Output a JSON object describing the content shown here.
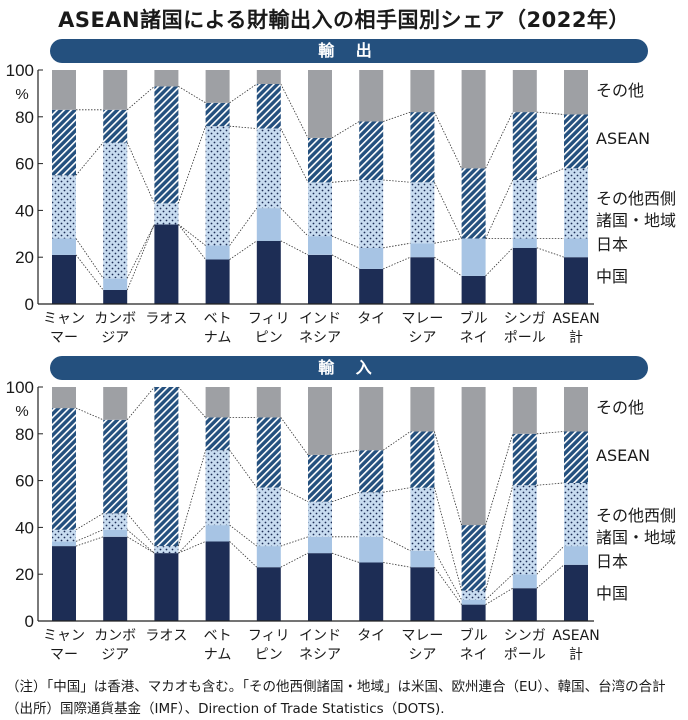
{
  "title": "ASEAN諸国による財輸出入の相手国別シェア（2022年）",
  "notes": {
    "note1": "（注）「中国」は香港、マカオも含む。「その他西側諸国・地域」は米国、欧州連合（EU）、韓国、台湾の合計",
    "note2": "（出所）国際通貨基金（IMF）、Direction of Trade Statistics（DOTS)."
  },
  "colors": {
    "china": "#1d2d55",
    "japan": "#a7c4e4",
    "west_bg": "#c8dcf0",
    "asean_bg": "#24507e",
    "other": "#9ea0a4",
    "banner": "#24507e"
  },
  "chart_data": [
    {
      "type": "bar",
      "stacked": true,
      "title": "輸 出",
      "unit_label": "%",
      "ylim": [
        0,
        100
      ],
      "yticks": [
        0,
        20,
        40,
        60,
        80,
        100
      ],
      "categories": [
        [
          "ミャン",
          "マー"
        ],
        [
          "カンボ",
          "ジア"
        ],
        [
          "ラオス"
        ],
        [
          "ベト",
          "ナム"
        ],
        [
          "フィリ",
          "ピン"
        ],
        [
          "インド",
          "ネシア"
        ],
        [
          "タイ"
        ],
        [
          "マレー",
          "シア"
        ],
        [
          "ブル",
          "ネイ"
        ],
        [
          "シンガ",
          "ポール"
        ],
        [
          "ASEAN",
          "計"
        ]
      ],
      "series": [
        {
          "name": "中国",
          "values": [
            21,
            6,
            34,
            19,
            27,
            21,
            15,
            20,
            12,
            24,
            20
          ]
        },
        {
          "name": "日本",
          "values": [
            7,
            5,
            0,
            6,
            14,
            8,
            9,
            6,
            16,
            4,
            8
          ]
        },
        {
          "name": "その他西側諸国・地域",
          "values": [
            27,
            58,
            9,
            51,
            34,
            23,
            29,
            26,
            0,
            25,
            30
          ]
        },
        {
          "name": "ASEAN",
          "values": [
            28,
            14,
            50,
            10,
            19,
            19,
            25,
            30,
            30,
            29,
            23
          ]
        },
        {
          "name": "その他",
          "values": [
            17,
            17,
            7,
            14,
            6,
            29,
            22,
            18,
            42,
            18,
            19
          ]
        }
      ]
    },
    {
      "type": "bar",
      "stacked": true,
      "title": "輸 入",
      "unit_label": "%",
      "ylim": [
        0,
        100
      ],
      "yticks": [
        0,
        20,
        40,
        60,
        80,
        100
      ],
      "categories": [
        [
          "ミャン",
          "マー"
        ],
        [
          "カンボ",
          "ジア"
        ],
        [
          "ラオス"
        ],
        [
          "ベト",
          "ナム"
        ],
        [
          "フィリ",
          "ピン"
        ],
        [
          "インド",
          "ネシア"
        ],
        [
          "タイ"
        ],
        [
          "マレー",
          "シア"
        ],
        [
          "ブル",
          "ネイ"
        ],
        [
          "シンガ",
          "ポール"
        ],
        [
          "ASEAN",
          "計"
        ]
      ],
      "series": [
        {
          "name": "中国",
          "values": [
            32,
            36,
            29,
            34,
            23,
            29,
            25,
            23,
            7,
            14,
            24
          ]
        },
        {
          "name": "日本",
          "values": [
            2,
            3,
            0,
            7,
            9,
            7,
            11,
            7,
            2,
            6,
            8
          ]
        },
        {
          "name": "その他西側諸国・地域",
          "values": [
            5,
            7,
            3,
            32,
            25,
            15,
            19,
            27,
            4,
            38,
            27
          ]
        },
        {
          "name": "ASEAN",
          "values": [
            52,
            40,
            68,
            14,
            30,
            20,
            18,
            24,
            28,
            22,
            22
          ]
        },
        {
          "name": "その他",
          "values": [
            9,
            14,
            0,
            13,
            13,
            29,
            27,
            19,
            59,
            20,
            19
          ]
        }
      ]
    }
  ]
}
